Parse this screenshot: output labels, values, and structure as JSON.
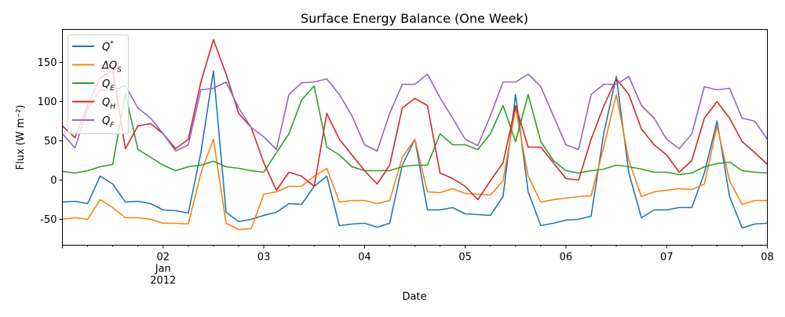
{
  "chart_data": {
    "type": "line",
    "title": "Surface Energy Balance (One Week)",
    "xlabel": "Date",
    "ylabel": "Flux (W m⁻²)",
    "xlim": [
      "2012-01-01 00:00",
      "2012-01-08 00:00"
    ],
    "ylim": [
      -83,
      192
    ],
    "x_ticks": [
      {
        "date": "2012-01-02",
        "label": [
          "02",
          "Jan",
          "2012"
        ]
      },
      {
        "date": "2012-01-03",
        "label": [
          "03"
        ]
      },
      {
        "date": "2012-01-04",
        "label": [
          "04"
        ]
      },
      {
        "date": "2012-01-05",
        "label": [
          "05"
        ]
      },
      {
        "date": "2012-01-06",
        "label": [
          "06"
        ]
      },
      {
        "date": "2012-01-07",
        "label": [
          "07"
        ]
      },
      {
        "date": "2012-01-08",
        "label": [
          "08"
        ]
      }
    ],
    "y_ticks": [
      -50,
      0,
      50,
      100,
      150
    ],
    "grid": false,
    "legend_position": "upper-left",
    "x": [
      "2012-01-01 00:00",
      "2012-01-01 03:00",
      "2012-01-01 06:00",
      "2012-01-01 09:00",
      "2012-01-01 12:00",
      "2012-01-01 15:00",
      "2012-01-01 18:00",
      "2012-01-01 21:00",
      "2012-01-02 00:00",
      "2012-01-02 03:00",
      "2012-01-02 06:00",
      "2012-01-02 09:00",
      "2012-01-02 12:00",
      "2012-01-02 15:00",
      "2012-01-02 18:00",
      "2012-01-02 21:00",
      "2012-01-03 00:00",
      "2012-01-03 03:00",
      "2012-01-03 06:00",
      "2012-01-03 09:00",
      "2012-01-03 12:00",
      "2012-01-03 15:00",
      "2012-01-03 18:00",
      "2012-01-03 21:00",
      "2012-01-04 00:00",
      "2012-01-04 03:00",
      "2012-01-04 06:00",
      "2012-01-04 09:00",
      "2012-01-04 12:00",
      "2012-01-04 15:00",
      "2012-01-04 18:00",
      "2012-01-04 21:00",
      "2012-01-05 00:00",
      "2012-01-05 03:00",
      "2012-01-05 06:00",
      "2012-01-05 09:00",
      "2012-01-05 12:00",
      "2012-01-05 15:00",
      "2012-01-05 18:00",
      "2012-01-05 21:00",
      "2012-01-06 00:00",
      "2012-01-06 03:00",
      "2012-01-06 06:00",
      "2012-01-06 09:00",
      "2012-01-06 12:00",
      "2012-01-06 15:00",
      "2012-01-06 18:00",
      "2012-01-06 21:00",
      "2012-01-07 00:00",
      "2012-01-07 03:00",
      "2012-01-07 06:00",
      "2012-01-07 09:00",
      "2012-01-07 12:00",
      "2012-01-07 15:00",
      "2012-01-07 18:00",
      "2012-01-07 21:00",
      "2012-01-08 00:00"
    ],
    "series": [
      {
        "name": "Q*",
        "color": "#1f77b4",
        "values": [
          -28,
          -27,
          -30,
          5,
          -5,
          -28,
          -27,
          -30,
          -38,
          -39,
          -42,
          35,
          139,
          -41,
          -53,
          -50,
          -45,
          -41,
          -30,
          -31,
          -8,
          5,
          -58,
          -56,
          -55,
          -60,
          -55,
          19,
          52,
          -38,
          -38,
          -35,
          -43,
          -44,
          -45,
          -21,
          109,
          -15,
          -58,
          -55,
          -51,
          -50,
          -46,
          59,
          132,
          9,
          -48,
          -38,
          -38,
          -35,
          -35,
          9,
          75,
          -21,
          -61,
          -56,
          -55
        ]
      },
      {
        "name": "ΔQ_S",
        "color": "#ff7f0e",
        "values": [
          -50,
          -48,
          -50,
          -25,
          -35,
          -48,
          -48,
          -50,
          -55,
          -55,
          -56,
          9,
          52,
          -55,
          -63,
          -62,
          -18,
          -15,
          -8,
          -8,
          5,
          15,
          -28,
          -26,
          -26,
          -30,
          -26,
          29,
          52,
          -15,
          -16,
          -11,
          -17,
          -18,
          -19,
          -1,
          92,
          5,
          -28,
          -25,
          -23,
          -21,
          -20,
          42,
          109,
          25,
          -21,
          -15,
          -13,
          -11,
          -12,
          -5,
          69,
          -1,
          -31,
          -26,
          -26
        ]
      },
      {
        "name": "Q_E",
        "color": "#2ca02c",
        "values": [
          11,
          9,
          12,
          17,
          20,
          110,
          39,
          29,
          19,
          12,
          17,
          19,
          24,
          17,
          15,
          12,
          10,
          35,
          59,
          102,
          120,
          42,
          32,
          17,
          12,
          12,
          12,
          17,
          19,
          19,
          59,
          45,
          45,
          39,
          59,
          95,
          49,
          109,
          49,
          25,
          12,
          9,
          12,
          14,
          19,
          17,
          14,
          10,
          10,
          7,
          9,
          17,
          21,
          23,
          12,
          10,
          9
        ]
      },
      {
        "name": "Q_H",
        "color": "#d62728",
        "values": [
          69,
          54,
          95,
          130,
          140,
          40,
          69,
          72,
          59,
          40,
          52,
          125,
          179,
          135,
          85,
          67,
          22,
          -13,
          10,
          5,
          -8,
          85,
          52,
          32,
          12,
          -5,
          19,
          92,
          104,
          95,
          9,
          2,
          -8,
          -25,
          -1,
          22,
          95,
          42,
          42,
          22,
          2,
          0,
          52,
          94,
          129,
          109,
          65,
          45,
          32,
          10,
          25,
          79,
          100,
          79,
          49,
          35,
          20
        ]
      },
      {
        "name": "Q_F",
        "color": "#9467bd",
        "values": [
          59,
          41,
          90,
          115,
          115,
          120,
          92,
          79,
          59,
          37,
          45,
          115,
          117,
          125,
          92,
          67,
          55,
          39,
          109,
          124,
          125,
          129,
          109,
          82,
          45,
          37,
          85,
          122,
          122,
          135,
          105,
          79,
          52,
          44,
          82,
          125,
          125,
          135,
          119,
          82,
          45,
          39,
          109,
          122,
          122,
          132,
          95,
          79,
          52,
          40,
          59,
          119,
          115,
          117,
          79,
          75,
          52
        ]
      }
    ]
  }
}
